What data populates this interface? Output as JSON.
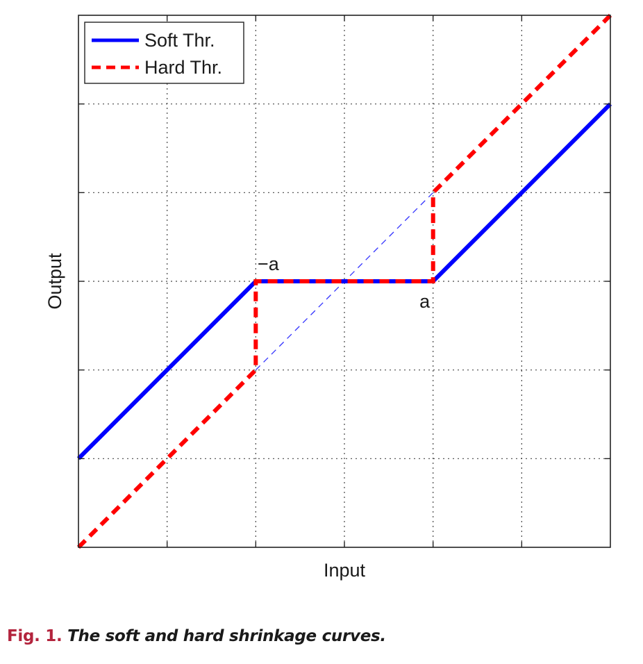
{
  "chart_data": {
    "type": "line",
    "xlabel": "Input",
    "ylabel": "Output",
    "xlim": [
      -3,
      3
    ],
    "ylim": [
      -3,
      3
    ],
    "grid": true,
    "legend_position": "top-left",
    "colors": {
      "soft": "#0000ff",
      "hard": "#ff0000",
      "identity": "#3333ff"
    },
    "series": [
      {
        "name": "Soft Thr.",
        "style": "solid",
        "x": [
          -3,
          -1,
          1,
          3
        ],
        "y": [
          -2,
          0,
          0,
          2
        ]
      },
      {
        "name": "Hard Thr.",
        "style": "dashed",
        "x": [
          -3,
          -1,
          -1,
          1,
          1,
          3
        ],
        "y": [
          -3,
          -1,
          0,
          0,
          1,
          3
        ]
      },
      {
        "name": "",
        "style": "thin-dashed",
        "x": [
          -1,
          1
        ],
        "y": [
          -1,
          1
        ]
      }
    ],
    "annotations": [
      {
        "text": "−a",
        "x": -1,
        "y": 0
      },
      {
        "text": "a",
        "x": 1,
        "y": 0
      }
    ]
  },
  "caption": {
    "prefix": "Fig. 1.",
    "text": "The soft and hard shrinkage curves."
  }
}
